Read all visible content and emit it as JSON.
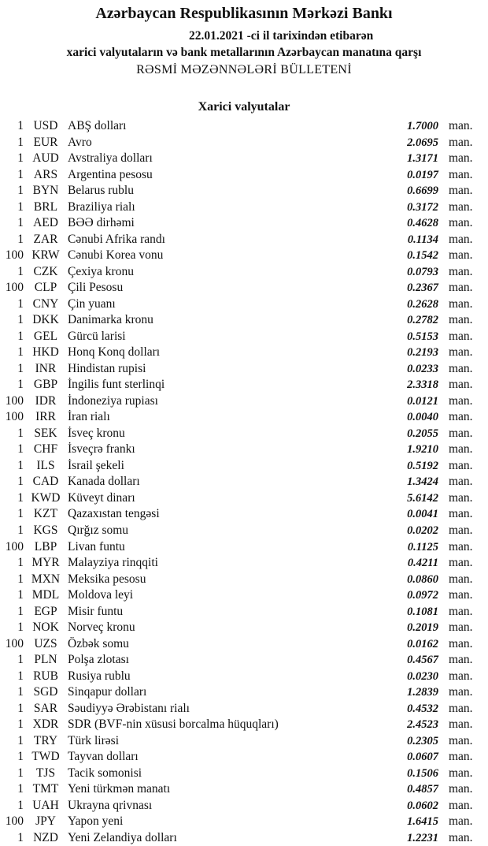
{
  "header": {
    "title": "Azərbaycan Respublikasının Mərkəzi Bankı",
    "date_line": "22.01.2021 -ci il tarixindən etibarən",
    "subtitle": "xarici valyutaların və bank metallarının Azərbaycan manatına qarşı",
    "bulletin": "RƏSMİ MƏZƏNNƏLƏRİ BÜLLETENİ",
    "section": "Xarici valyutalar"
  },
  "unit": "man.",
  "rates": [
    {
      "qty": "1",
      "code": "USD",
      "name": "ABŞ dolları",
      "rate": "1.7000"
    },
    {
      "qty": "1",
      "code": "EUR",
      "name": "Avro",
      "rate": "2.0695"
    },
    {
      "qty": "1",
      "code": "AUD",
      "name": "Avstraliya dolları",
      "rate": "1.3171"
    },
    {
      "qty": "1",
      "code": "ARS",
      "name": "Argentina pesosu",
      "rate": "0.0197"
    },
    {
      "qty": "1",
      "code": "BYN",
      "name": "Belarus rublu",
      "rate": "0.6699"
    },
    {
      "qty": "1",
      "code": "BRL",
      "name": "Braziliya rialı",
      "rate": "0.3172"
    },
    {
      "qty": "1",
      "code": "AED",
      "name": "BƏƏ dirhəmi",
      "rate": "0.4628"
    },
    {
      "qty": "1",
      "code": "ZAR",
      "name": "Cənubi Afrika randı",
      "rate": "0.1134"
    },
    {
      "qty": "100",
      "code": "KRW",
      "name": "Cənubi Korea vonu",
      "rate": "0.1542"
    },
    {
      "qty": "1",
      "code": "CZK",
      "name": "Çexiya kronu",
      "rate": "0.0793"
    },
    {
      "qty": "100",
      "code": "CLP",
      "name": "Çili Pesosu",
      "rate": "0.2367"
    },
    {
      "qty": "1",
      "code": "CNY",
      "name": "Çin yuanı",
      "rate": "0.2628"
    },
    {
      "qty": "1",
      "code": "DKK",
      "name": "Danimarka kronu",
      "rate": "0.2782"
    },
    {
      "qty": "1",
      "code": "GEL",
      "name": "Gürcü larisi",
      "rate": "0.5153"
    },
    {
      "qty": "1",
      "code": "HKD",
      "name": "Honq Konq dolları",
      "rate": "0.2193"
    },
    {
      "qty": "1",
      "code": "INR",
      "name": "Hindistan rupisi",
      "rate": "0.0233"
    },
    {
      "qty": "1",
      "code": "GBP",
      "name": "İngilis funt sterlinqi",
      "rate": "2.3318"
    },
    {
      "qty": "100",
      "code": "IDR",
      "name": "İndoneziya rupiası",
      "rate": "0.0121"
    },
    {
      "qty": "100",
      "code": "IRR",
      "name": "İran rialı",
      "rate": "0.0040"
    },
    {
      "qty": "1",
      "code": "SEK",
      "name": "İsveç kronu",
      "rate": "0.2055"
    },
    {
      "qty": "1",
      "code": "CHF",
      "name": "İsveçrə frankı",
      "rate": "1.9210"
    },
    {
      "qty": "1",
      "code": "ILS",
      "name": "İsrail şekeli",
      "rate": "0.5192"
    },
    {
      "qty": "1",
      "code": "CAD",
      "name": "Kanada dolları",
      "rate": "1.3424"
    },
    {
      "qty": "1",
      "code": "KWD",
      "name": "Küveyt dinarı",
      "rate": "5.6142"
    },
    {
      "qty": "1",
      "code": "KZT",
      "name": "Qazaxıstan tengəsi",
      "rate": "0.0041"
    },
    {
      "qty": "1",
      "code": "KGS",
      "name": "Qırğız somu",
      "rate": "0.0202"
    },
    {
      "qty": "100",
      "code": "LBP",
      "name": "Livan funtu",
      "rate": "0.1125"
    },
    {
      "qty": "1",
      "code": "MYR",
      "name": "Malayziya rinqqiti",
      "rate": "0.4211"
    },
    {
      "qty": "1",
      "code": "MXN",
      "name": "Meksika pesosu",
      "rate": "0.0860"
    },
    {
      "qty": "1",
      "code": "MDL",
      "name": "Moldova leyi",
      "rate": "0.0972"
    },
    {
      "qty": "1",
      "code": "EGP",
      "name": "Misir funtu",
      "rate": "0.1081"
    },
    {
      "qty": "1",
      "code": "NOK",
      "name": "Norveç kronu",
      "rate": "0.2019"
    },
    {
      "qty": "100",
      "code": "UZS",
      "name": "Özbək somu",
      "rate": "0.0162"
    },
    {
      "qty": "1",
      "code": "PLN",
      "name": "Polşa zlotası",
      "rate": "0.4567"
    },
    {
      "qty": "1",
      "code": "RUB",
      "name": "Rusiya rublu",
      "rate": "0.0230"
    },
    {
      "qty": "1",
      "code": "SGD",
      "name": "Sinqapur dolları",
      "rate": "1.2839"
    },
    {
      "qty": "1",
      "code": "SAR",
      "name": "Səudiyyə Ərəbistanı rialı",
      "rate": "0.4532"
    },
    {
      "qty": "1",
      "code": "XDR",
      "name": "SDR (BVF-nin xüsusi borcalma hüquqları)",
      "rate": "2.4523"
    },
    {
      "qty": "1",
      "code": "TRY",
      "name": "Türk lirəsi",
      "rate": "0.2305"
    },
    {
      "qty": "1",
      "code": "TWD",
      "name": "Tayvan dolları",
      "rate": "0.0607"
    },
    {
      "qty": "1",
      "code": "TJS",
      "name": "Tacik somonisi",
      "rate": "0.1506"
    },
    {
      "qty": "1",
      "code": "TMT",
      "name": "Yeni türkmən manatı",
      "rate": "0.4857"
    },
    {
      "qty": "1",
      "code": "UAH",
      "name": "Ukrayna qrivnası",
      "rate": "0.0602"
    },
    {
      "qty": "100",
      "code": "JPY",
      "name": "Yapon yeni",
      "rate": "1.6415"
    },
    {
      "qty": "1",
      "code": "NZD",
      "name": "Yeni Zelandiya dolları",
      "rate": "1.2231"
    }
  ]
}
